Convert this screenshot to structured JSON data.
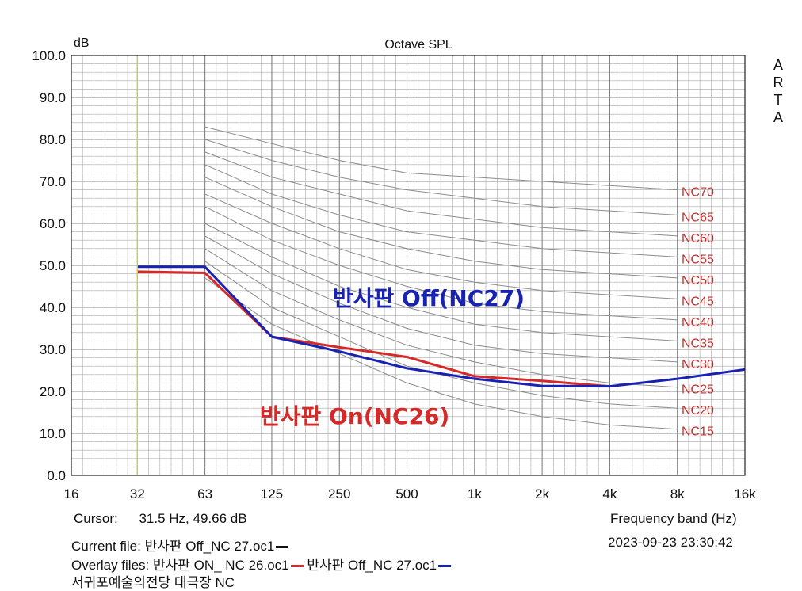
{
  "chart_data": {
    "type": "line",
    "title": "Octave SPL",
    "ylabel": "dB",
    "xlabel": "",
    "brand": [
      "A",
      "R",
      "T",
      "A"
    ],
    "x_ticks": [
      "16",
      "32",
      "63",
      "125",
      "250",
      "500",
      "1k",
      "2k",
      "4k",
      "8k",
      "16k"
    ],
    "x_hz": [
      16,
      31.5,
      63,
      125,
      250,
      500,
      1000,
      2000,
      4000,
      8000,
      16000
    ],
    "x_scale": "log",
    "ylim": [
      0,
      100
    ],
    "y_ticks": [
      "0.0",
      "10.0",
      "20.0",
      "30.0",
      "40.0",
      "50.0",
      "60.0",
      "70.0",
      "80.0",
      "90.0",
      "100.0"
    ],
    "grid": true,
    "nc_curves": [
      {
        "name": "NC15",
        "values": [
          47,
          36,
          29,
          22,
          17,
          14,
          12,
          11
        ]
      },
      {
        "name": "NC20",
        "values": [
          51,
          40,
          33,
          26,
          22,
          19,
          17,
          16
        ]
      },
      {
        "name": "NC25",
        "values": [
          54,
          44,
          37,
          31,
          27,
          24,
          22,
          21
        ]
      },
      {
        "name": "NC30",
        "values": [
          57,
          48,
          41,
          35,
          31,
          29,
          28,
          27
        ]
      },
      {
        "name": "NC35",
        "values": [
          60,
          52,
          45,
          40,
          36,
          34,
          33,
          32
        ]
      },
      {
        "name": "NC40",
        "values": [
          64,
          56,
          50,
          45,
          41,
          39,
          38,
          37
        ]
      },
      {
        "name": "NC45",
        "values": [
          67,
          60,
          54,
          49,
          46,
          44,
          43,
          42
        ]
      },
      {
        "name": "NC50",
        "values": [
          71,
          64,
          58,
          54,
          51,
          49,
          48,
          47
        ]
      },
      {
        "name": "NC55",
        "values": [
          74,
          67,
          62,
          58,
          56,
          54,
          53,
          52
        ]
      },
      {
        "name": "NC60",
        "values": [
          77,
          71,
          67,
          63,
          61,
          59,
          58,
          57
        ]
      },
      {
        "name": "NC65",
        "values": [
          80,
          75,
          71,
          68,
          66,
          64,
          63,
          62
        ]
      },
      {
        "name": "NC70",
        "values": [
          83,
          79,
          75,
          72,
          71,
          70,
          69,
          68
        ]
      }
    ],
    "series": [
      {
        "name": "반사판 On(NC26)",
        "color": "#d42a2a",
        "x": [
          31.5,
          63,
          125,
          250,
          500,
          1000,
          2000,
          4000
        ],
        "values": [
          48.5,
          48.2,
          33,
          30.5,
          28.2,
          23.6,
          22.5,
          21.2
        ]
      },
      {
        "name": "반사판 Off(NC27)",
        "color": "#1a23b0",
        "x": [
          31.5,
          63,
          125,
          250,
          500,
          1000,
          2000,
          4000,
          8000,
          16000
        ],
        "values": [
          49.66,
          49.66,
          33,
          29.5,
          25.5,
          23,
          21.3,
          21.2,
          23,
          25.2
        ]
      }
    ],
    "cursor_hz": 31.5
  },
  "colors": {
    "grid": "#a8a8a8",
    "nc_curve": "#8c8c8c",
    "nc_label": "#c0302c",
    "cursor": "#d8d400",
    "annotation_off": "#1a23b0",
    "annotation_on": "#d42a2a",
    "overlay_red": "#d42a2a",
    "overlay_blue": "#1a23b0"
  },
  "info": {
    "cursor_label": "Cursor:",
    "cursor_value": "31.5 Hz, 49.66 dB",
    "freq_band": "Frequency band (Hz)",
    "current_file_label": "Current file:",
    "current_file_value": "반사판 Off_NC 27.oc1",
    "datetime": "2023-09-23  23:30:42",
    "overlay_label": "Overlay files:",
    "overlay_file_1": "반사판 ON_ NC 26.oc1",
    "overlay_file_2": "반사판 Off_NC 27.oc1",
    "venue": "서귀포예술의전당 대극장 NC"
  }
}
